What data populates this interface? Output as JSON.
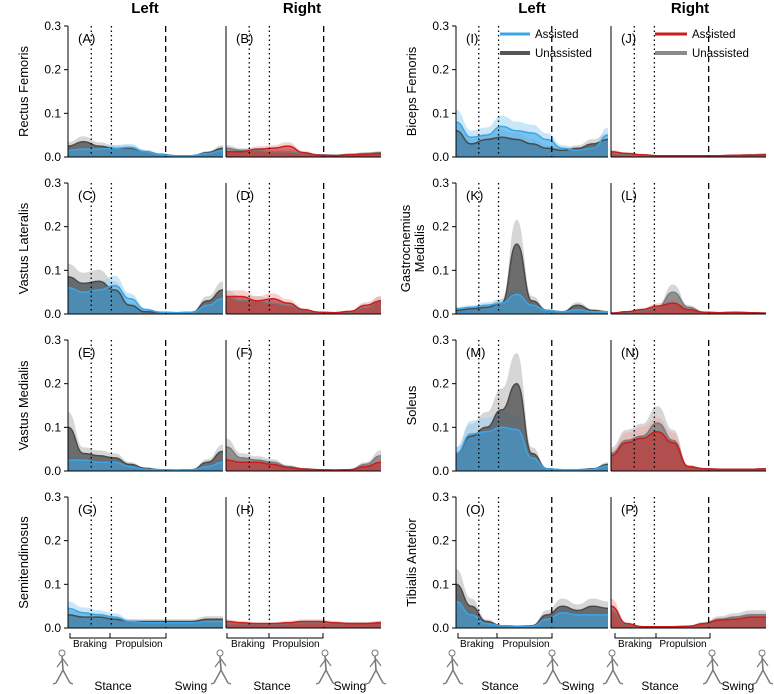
{
  "figure": {
    "colors": {
      "assisted_left": "#3aa6e8",
      "assisted_right": "#c81e1e",
      "unassisted_dark": "#4a4a4a",
      "unassisted_right": "#7a7a7a",
      "band_grey": "#b5b5b5",
      "band_blue": "#9fd4f4",
      "band_red": "#f0aaaa",
      "fill_overlap": "#6f8fa6"
    },
    "column_titles": [
      "Left",
      "Right",
      "Left",
      "Right"
    ],
    "legend_left": {
      "assisted": "Assisted",
      "unassisted": "Unassisted"
    },
    "legend_right": {
      "assisted": "Assisted",
      "unassisted": "Unassisted"
    },
    "phase_labels": {
      "braking": "Braking",
      "propulsion": "Propulsion",
      "stance": "Stance",
      "swing": "Swing"
    },
    "icon": "walking-figure-icon"
  },
  "chart_data": [
    {
      "id": "A",
      "type": "area",
      "side": "left",
      "muscle": "Rectus Femoris",
      "ylim": [
        0,
        0.3
      ],
      "yticks": [
        "0.0",
        "0.1",
        "0.2",
        "0.3"
      ],
      "x": [
        0,
        10,
        20,
        30,
        40,
        50,
        60,
        70,
        80,
        90,
        100
      ],
      "series": [
        {
          "name": "Unassisted",
          "values": [
            0.025,
            0.035,
            0.025,
            0.02,
            0.02,
            0.012,
            0.006,
            0.003,
            0.003,
            0.01,
            0.02
          ]
        },
        {
          "name": "Assisted",
          "values": [
            0.015,
            0.018,
            0.018,
            0.02,
            0.022,
            0.012,
            0.005,
            0.003,
            0.003,
            0.008,
            0.015
          ]
        }
      ]
    },
    {
      "id": "B",
      "type": "area",
      "side": "right",
      "muscle": "Rectus Femoris",
      "ylim": [
        0,
        0.3
      ],
      "yticks": [],
      "x": [
        0,
        10,
        20,
        30,
        40,
        50,
        60,
        70,
        80,
        90,
        100
      ],
      "series": [
        {
          "name": "Unassisted",
          "values": [
            0.02,
            0.015,
            0.015,
            0.012,
            0.012,
            0.008,
            0.005,
            0.004,
            0.006,
            0.008,
            0.01
          ]
        },
        {
          "name": "Assisted",
          "values": [
            0.012,
            0.012,
            0.018,
            0.02,
            0.025,
            0.01,
            0.004,
            0.003,
            0.005,
            0.006,
            0.008
          ]
        }
      ]
    },
    {
      "id": "I",
      "type": "area",
      "side": "left",
      "muscle": "Biceps Femoris",
      "ylim": [
        0,
        0.3
      ],
      "yticks": [
        "0.0",
        "0.1",
        "0.2",
        "0.3"
      ],
      "x": [
        0,
        10,
        20,
        30,
        40,
        50,
        60,
        70,
        80,
        90,
        100
      ],
      "series": [
        {
          "name": "Unassisted",
          "values": [
            0.06,
            0.03,
            0.04,
            0.045,
            0.04,
            0.03,
            0.02,
            0.015,
            0.02,
            0.03,
            0.04
          ]
        },
        {
          "name": "Assisted",
          "values": [
            0.08,
            0.045,
            0.05,
            0.07,
            0.06,
            0.055,
            0.04,
            0.02,
            0.015,
            0.02,
            0.05
          ]
        }
      ]
    },
    {
      "id": "J",
      "type": "area",
      "side": "right",
      "muscle": "Biceps Femoris",
      "ylim": [
        0,
        0.3
      ],
      "yticks": [],
      "x": [
        0,
        10,
        20,
        30,
        40,
        50,
        60,
        70,
        80,
        90,
        100
      ],
      "series": [
        {
          "name": "Unassisted",
          "values": [
            0.008,
            0.005,
            0.004,
            0.003,
            0.003,
            0.003,
            0.003,
            0.003,
            0.004,
            0.005,
            0.006
          ]
        },
        {
          "name": "Assisted",
          "values": [
            0.012,
            0.008,
            0.005,
            0.003,
            0.003,
            0.003,
            0.003,
            0.003,
            0.004,
            0.004,
            0.005
          ]
        }
      ]
    },
    {
      "id": "C",
      "type": "area",
      "side": "left",
      "muscle": "Vastus Lateralis",
      "ylim": [
        0,
        0.3
      ],
      "yticks": [
        "0.0",
        "0.1",
        "0.2",
        "0.3"
      ],
      "x": [
        0,
        10,
        20,
        30,
        40,
        50,
        60,
        70,
        80,
        90,
        100
      ],
      "series": [
        {
          "name": "Unassisted",
          "values": [
            0.085,
            0.07,
            0.075,
            0.055,
            0.02,
            0.005,
            0.004,
            0.003,
            0.004,
            0.03,
            0.055
          ]
        },
        {
          "name": "Assisted",
          "values": [
            0.06,
            0.05,
            0.055,
            0.065,
            0.035,
            0.01,
            0.004,
            0.003,
            0.004,
            0.02,
            0.035
          ]
        }
      ]
    },
    {
      "id": "D",
      "type": "area",
      "side": "right",
      "muscle": "Vastus Lateralis",
      "ylim": [
        0,
        0.3
      ],
      "yticks": [],
      "x": [
        0,
        10,
        20,
        30,
        40,
        50,
        60,
        70,
        80,
        90,
        100
      ],
      "series": [
        {
          "name": "Unassisted",
          "values": [
            0.04,
            0.03,
            0.03,
            0.025,
            0.02,
            0.008,
            0.004,
            0.003,
            0.005,
            0.015,
            0.03
          ]
        },
        {
          "name": "Assisted",
          "values": [
            0.04,
            0.04,
            0.03,
            0.035,
            0.025,
            0.01,
            0.004,
            0.003,
            0.006,
            0.02,
            0.03
          ]
        }
      ]
    },
    {
      "id": "K",
      "type": "area",
      "side": "left",
      "muscle": "Gastrocnemius Medialis",
      "ylim": [
        0,
        0.3
      ],
      "yticks": [
        "0.0",
        "0.1",
        "0.2",
        "0.3"
      ],
      "x": [
        0,
        10,
        20,
        30,
        40,
        50,
        60,
        70,
        80,
        90,
        100
      ],
      "series": [
        {
          "name": "Unassisted",
          "values": [
            0.008,
            0.012,
            0.015,
            0.025,
            0.16,
            0.03,
            0.008,
            0.005,
            0.02,
            0.008,
            0.005
          ]
        },
        {
          "name": "Assisted",
          "values": [
            0.012,
            0.015,
            0.02,
            0.025,
            0.045,
            0.02,
            0.008,
            0.005,
            0.01,
            0.005,
            0.005
          ]
        }
      ]
    },
    {
      "id": "L",
      "type": "area",
      "side": "right",
      "muscle": "Gastrocnemius Medialis",
      "ylim": [
        0,
        0.3
      ],
      "yticks": [],
      "x": [
        0,
        10,
        20,
        30,
        40,
        50,
        60,
        70,
        80,
        90,
        100
      ],
      "series": [
        {
          "name": "Unassisted",
          "values": [
            0.002,
            0.004,
            0.008,
            0.015,
            0.05,
            0.015,
            0.004,
            0.003,
            0.004,
            0.003,
            0.002
          ]
        },
        {
          "name": "Assisted",
          "values": [
            0.002,
            0.005,
            0.01,
            0.018,
            0.025,
            0.01,
            0.004,
            0.003,
            0.004,
            0.003,
            0.002
          ]
        }
      ]
    },
    {
      "id": "E",
      "type": "area",
      "side": "left",
      "muscle": "Vastus Medialis",
      "ylim": [
        0,
        0.3
      ],
      "yticks": [
        "0.0",
        "0.1",
        "0.2",
        "0.3"
      ],
      "x": [
        0,
        10,
        20,
        30,
        40,
        50,
        60,
        70,
        80,
        90,
        100
      ],
      "series": [
        {
          "name": "Unassisted",
          "values": [
            0.1,
            0.04,
            0.035,
            0.03,
            0.015,
            0.006,
            0.003,
            0.002,
            0.003,
            0.02,
            0.045
          ]
        },
        {
          "name": "Assisted",
          "values": [
            0.025,
            0.025,
            0.02,
            0.02,
            0.01,
            0.004,
            0.003,
            0.002,
            0.003,
            0.01,
            0.02
          ]
        }
      ]
    },
    {
      "id": "F",
      "type": "area",
      "side": "right",
      "muscle": "Vastus Medialis",
      "ylim": [
        0,
        0.3
      ],
      "yticks": [],
      "x": [
        0,
        10,
        20,
        30,
        40,
        50,
        60,
        70,
        80,
        90,
        100
      ],
      "series": [
        {
          "name": "Unassisted",
          "values": [
            0.055,
            0.03,
            0.025,
            0.02,
            0.01,
            0.005,
            0.003,
            0.002,
            0.003,
            0.015,
            0.035
          ]
        },
        {
          "name": "Assisted",
          "values": [
            0.025,
            0.02,
            0.02,
            0.015,
            0.008,
            0.004,
            0.003,
            0.002,
            0.003,
            0.01,
            0.02
          ]
        }
      ]
    },
    {
      "id": "M",
      "type": "area",
      "side": "left",
      "muscle": "Soleus",
      "ylim": [
        0,
        0.3
      ],
      "yticks": [
        "0.0",
        "0.1",
        "0.2",
        "0.3"
      ],
      "x": [
        0,
        10,
        20,
        30,
        40,
        50,
        60,
        70,
        80,
        90,
        100
      ],
      "series": [
        {
          "name": "Unassisted",
          "values": [
            0.04,
            0.08,
            0.1,
            0.14,
            0.2,
            0.04,
            0.005,
            0.003,
            0.003,
            0.005,
            0.015
          ]
        },
        {
          "name": "Assisted",
          "values": [
            0.04,
            0.085,
            0.09,
            0.1,
            0.095,
            0.03,
            0.005,
            0.003,
            0.003,
            0.004,
            0.012
          ]
        }
      ]
    },
    {
      "id": "N",
      "type": "area",
      "side": "right",
      "muscle": "Soleus",
      "ylim": [
        0,
        0.3
      ],
      "yticks": [],
      "x": [
        0,
        10,
        20,
        30,
        40,
        50,
        60,
        70,
        80,
        90,
        100
      ],
      "series": [
        {
          "name": "Unassisted",
          "values": [
            0.04,
            0.07,
            0.08,
            0.11,
            0.07,
            0.01,
            0.005,
            0.004,
            0.004,
            0.004,
            0.005
          ]
        },
        {
          "name": "Assisted",
          "values": [
            0.035,
            0.065,
            0.075,
            0.09,
            0.065,
            0.01,
            0.005,
            0.004,
            0.004,
            0.004,
            0.005
          ]
        }
      ]
    },
    {
      "id": "G",
      "type": "area",
      "side": "left",
      "muscle": "Semitendinosus",
      "ylim": [
        0,
        0.3
      ],
      "yticks": [
        "0.0",
        "0.1",
        "0.2",
        "0.3"
      ],
      "x": [
        0,
        10,
        20,
        30,
        40,
        50,
        60,
        70,
        80,
        90,
        100
      ],
      "series": [
        {
          "name": "Unassisted",
          "values": [
            0.03,
            0.025,
            0.025,
            0.02,
            0.015,
            0.015,
            0.015,
            0.015,
            0.015,
            0.02,
            0.02
          ]
        },
        {
          "name": "Assisted",
          "values": [
            0.045,
            0.035,
            0.03,
            0.025,
            0.015,
            0.012,
            0.012,
            0.012,
            0.012,
            0.015,
            0.015
          ]
        }
      ]
    },
    {
      "id": "H",
      "type": "area",
      "side": "right",
      "muscle": "Semitendinosus",
      "ylim": [
        0,
        0.3
      ],
      "yticks": [],
      "x": [
        0,
        10,
        20,
        30,
        40,
        50,
        60,
        70,
        80,
        90,
        100
      ],
      "series": [
        {
          "name": "Unassisted",
          "values": [
            0.01,
            0.01,
            0.008,
            0.008,
            0.01,
            0.012,
            0.012,
            0.01,
            0.01,
            0.01,
            0.012
          ]
        },
        {
          "name": "Assisted",
          "values": [
            0.015,
            0.012,
            0.01,
            0.01,
            0.012,
            0.015,
            0.015,
            0.012,
            0.01,
            0.01,
            0.012
          ]
        }
      ]
    },
    {
      "id": "O",
      "type": "area",
      "side": "left",
      "muscle": "Tibialis Anterior",
      "ylim": [
        0,
        0.3
      ],
      "yticks": [
        "0.0",
        "0.1",
        "0.2",
        "0.3"
      ],
      "x": [
        0,
        10,
        20,
        30,
        40,
        50,
        60,
        70,
        80,
        90,
        100
      ],
      "series": [
        {
          "name": "Unassisted",
          "values": [
            0.1,
            0.05,
            0.015,
            0.005,
            0.004,
            0.005,
            0.03,
            0.05,
            0.04,
            0.05,
            0.045
          ]
        },
        {
          "name": "Assisted",
          "values": [
            0.06,
            0.03,
            0.01,
            0.005,
            0.004,
            0.004,
            0.02,
            0.035,
            0.03,
            0.03,
            0.03
          ]
        }
      ]
    },
    {
      "id": "P",
      "type": "area",
      "side": "right",
      "muscle": "Tibialis Anterior",
      "ylim": [
        0,
        0.3
      ],
      "yticks": [],
      "x": [
        0,
        10,
        20,
        30,
        40,
        50,
        60,
        70,
        80,
        90,
        100
      ],
      "series": [
        {
          "name": "Unassisted",
          "values": [
            0.04,
            0.008,
            0.003,
            0.003,
            0.003,
            0.004,
            0.01,
            0.02,
            0.025,
            0.03,
            0.03
          ]
        },
        {
          "name": "Assisted",
          "values": [
            0.05,
            0.01,
            0.003,
            0.003,
            0.003,
            0.004,
            0.01,
            0.018,
            0.02,
            0.025,
            0.025
          ]
        }
      ]
    }
  ]
}
